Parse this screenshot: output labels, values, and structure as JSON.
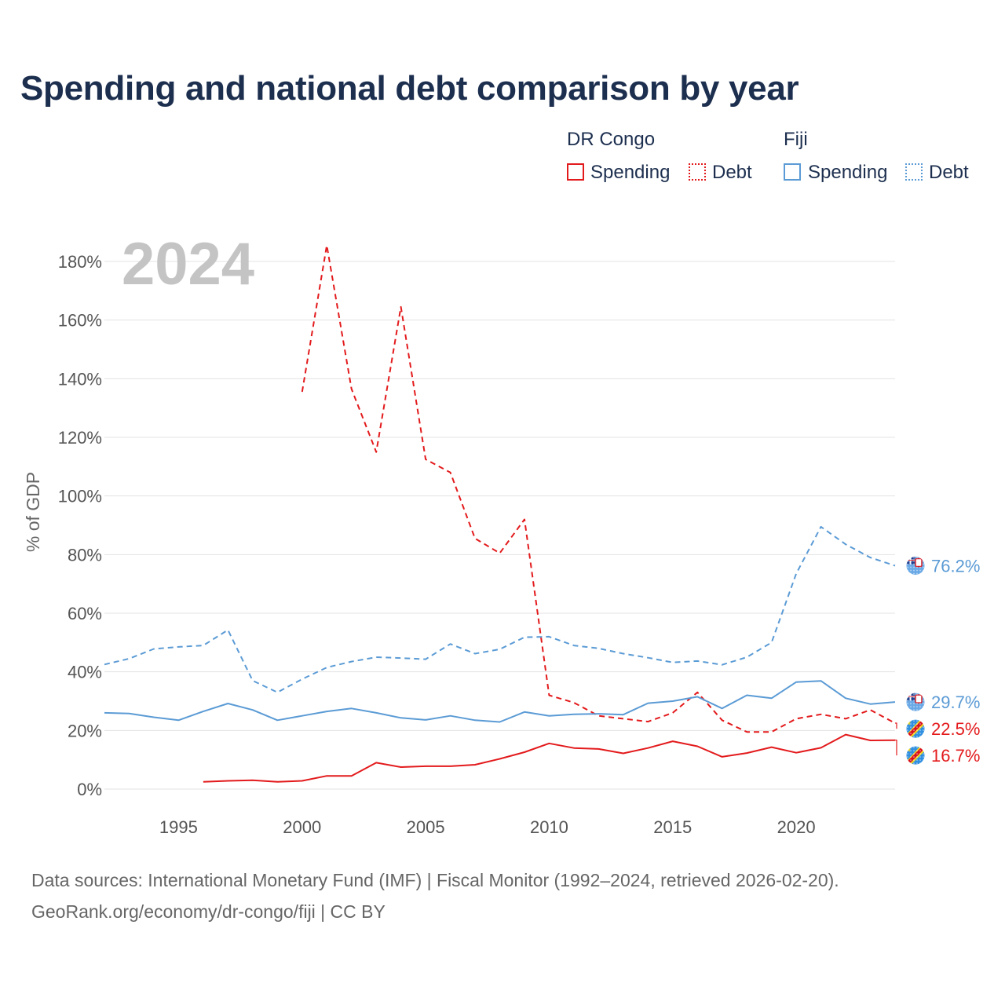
{
  "title": "Spending and national debt comparison by year",
  "legend": {
    "groups": [
      {
        "name": "DR Congo",
        "color": "#e31a1c",
        "items": [
          {
            "label": "Spending",
            "style": "solid"
          },
          {
            "label": "Debt",
            "style": "dotted"
          }
        ]
      },
      {
        "name": "Fiji",
        "color": "#5b9bd5",
        "items": [
          {
            "label": "Spending",
            "style": "solid"
          },
          {
            "label": "Debt",
            "style": "dotted"
          }
        ]
      }
    ]
  },
  "year_watermark": "2024",
  "footer": {
    "line1": "Data sources: International Monetary Fund (IMF) | Fiscal Monitor (1992–2024, retrieved 2026-02-20).",
    "line2": "GeoRank.org/economy/dr-congo/fiji | CC BY"
  },
  "chart_data": {
    "type": "line",
    "title": "Spending and national debt comparison by year",
    "xlabel": "",
    "ylabel": "% of GDP",
    "xlim": [
      1992,
      2024
    ],
    "ylim": [
      0,
      180
    ],
    "x_ticks": [
      1995,
      2000,
      2005,
      2010,
      2015,
      2020
    ],
    "y_ticks": [
      0,
      20,
      40,
      60,
      80,
      100,
      120,
      140,
      160,
      180
    ],
    "y_tick_labels": [
      "0%",
      "20%",
      "40%",
      "60%",
      "80%",
      "100%",
      "120%",
      "140%",
      "160%",
      "180%"
    ],
    "series": [
      {
        "name": "DR Congo Debt",
        "country": "DR Congo",
        "metric": "Debt",
        "color": "#e31a1c",
        "dash": "dashed",
        "start_year": 2000,
        "values": [
          135.5,
          185.5,
          136.5,
          115.0,
          164.5,
          112.5,
          108.0,
          85.5,
          80.5,
          92.0,
          32.0,
          29.5,
          25.0,
          24.0,
          23.0,
          26.0,
          33.0,
          23.5,
          19.5,
          19.5,
          24.0,
          25.5,
          24.0,
          27.0,
          22.5
        ],
        "end_label": "22.5%"
      },
      {
        "name": "DR Congo Spending",
        "country": "DR Congo",
        "metric": "Spending",
        "color": "#e31a1c",
        "dash": "solid",
        "start_year": 1996,
        "values": [
          2.5,
          2.8,
          3.0,
          2.5,
          2.8,
          4.5,
          4.5,
          9.0,
          7.5,
          7.8,
          7.8,
          8.3,
          10.3,
          12.6,
          15.6,
          14.0,
          13.7,
          12.2,
          14.0,
          16.3,
          14.6,
          11.0,
          12.3,
          14.3,
          12.4,
          14.1,
          18.6,
          16.6,
          16.7
        ],
        "end_label": "16.7%"
      },
      {
        "name": "Fiji Debt",
        "country": "Fiji",
        "metric": "Debt",
        "color": "#5b9bd5",
        "dash": "dashed",
        "start_year": 1992,
        "values": [
          42.5,
          44.5,
          47.8,
          48.5,
          49.0,
          54.3,
          37.0,
          33.0,
          37.5,
          41.5,
          43.5,
          45.0,
          44.7,
          44.3,
          49.5,
          46.2,
          47.7,
          51.8,
          52.0,
          49.0,
          48.0,
          46.2,
          44.8,
          43.2,
          43.7,
          42.4,
          45.0,
          50.0,
          73.5,
          89.5,
          83.5,
          79.0,
          76.2
        ],
        "end_label": "76.2%"
      },
      {
        "name": "Fiji Spending",
        "country": "Fiji",
        "metric": "Spending",
        "color": "#5b9bd5",
        "dash": "solid",
        "start_year": 1992,
        "values": [
          26.0,
          25.8,
          24.5,
          23.5,
          26.5,
          29.2,
          27.0,
          23.5,
          25.0,
          26.5,
          27.5,
          26.0,
          24.3,
          23.6,
          25.0,
          23.5,
          22.9,
          26.3,
          25.0,
          25.5,
          25.7,
          25.4,
          29.3,
          30.0,
          31.5,
          27.5,
          32.0,
          31.0,
          36.5,
          36.9,
          31.0,
          29.0,
          29.7
        ],
        "end_label": "29.7%"
      }
    ]
  }
}
